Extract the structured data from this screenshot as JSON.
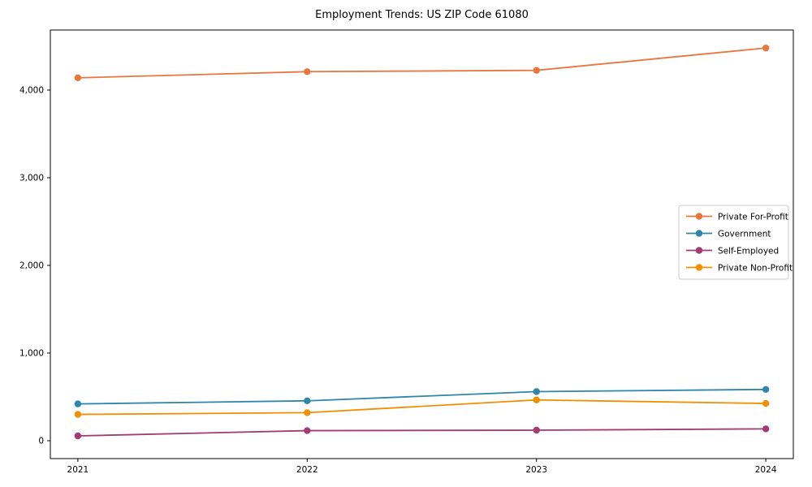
{
  "figure": {
    "background": "#ffffff",
    "spine_color": "#000000",
    "legend_border_color": "#cccccc"
  },
  "chart_data": {
    "type": "line",
    "title": "Employment Trends: US ZIP Code 61080",
    "xlabel": "",
    "ylabel": "",
    "x": [
      2021,
      2022,
      2023,
      2024
    ],
    "x_tick_labels": [
      "2021",
      "2022",
      "2023",
      "2024"
    ],
    "series": [
      {
        "name": "Private For-Profit",
        "color": "#E8773D",
        "values": [
          4140,
          4210,
          4225,
          4480
        ]
      },
      {
        "name": "Government",
        "color": "#2E86AB",
        "values": [
          420,
          455,
          560,
          585
        ]
      },
      {
        "name": "Self-Employed",
        "color": "#A23B72",
        "values": [
          55,
          115,
          120,
          135
        ]
      },
      {
        "name": "Private Non-Profit",
        "color": "#F18F01",
        "values": [
          300,
          320,
          465,
          425
        ]
      }
    ],
    "yticks": [
      {
        "value": 0,
        "label": "0"
      },
      {
        "value": 1000,
        "label": "1,000"
      },
      {
        "value": 2000,
        "label": "2,000"
      },
      {
        "value": 3000,
        "label": "3,000"
      },
      {
        "value": 4000,
        "label": "4,000"
      }
    ],
    "xlim": [
      2020.88,
      2024.12
    ],
    "ylim": [
      -204,
      4685
    ],
    "grid": false,
    "legend_position": "center right",
    "marker": "circle"
  }
}
